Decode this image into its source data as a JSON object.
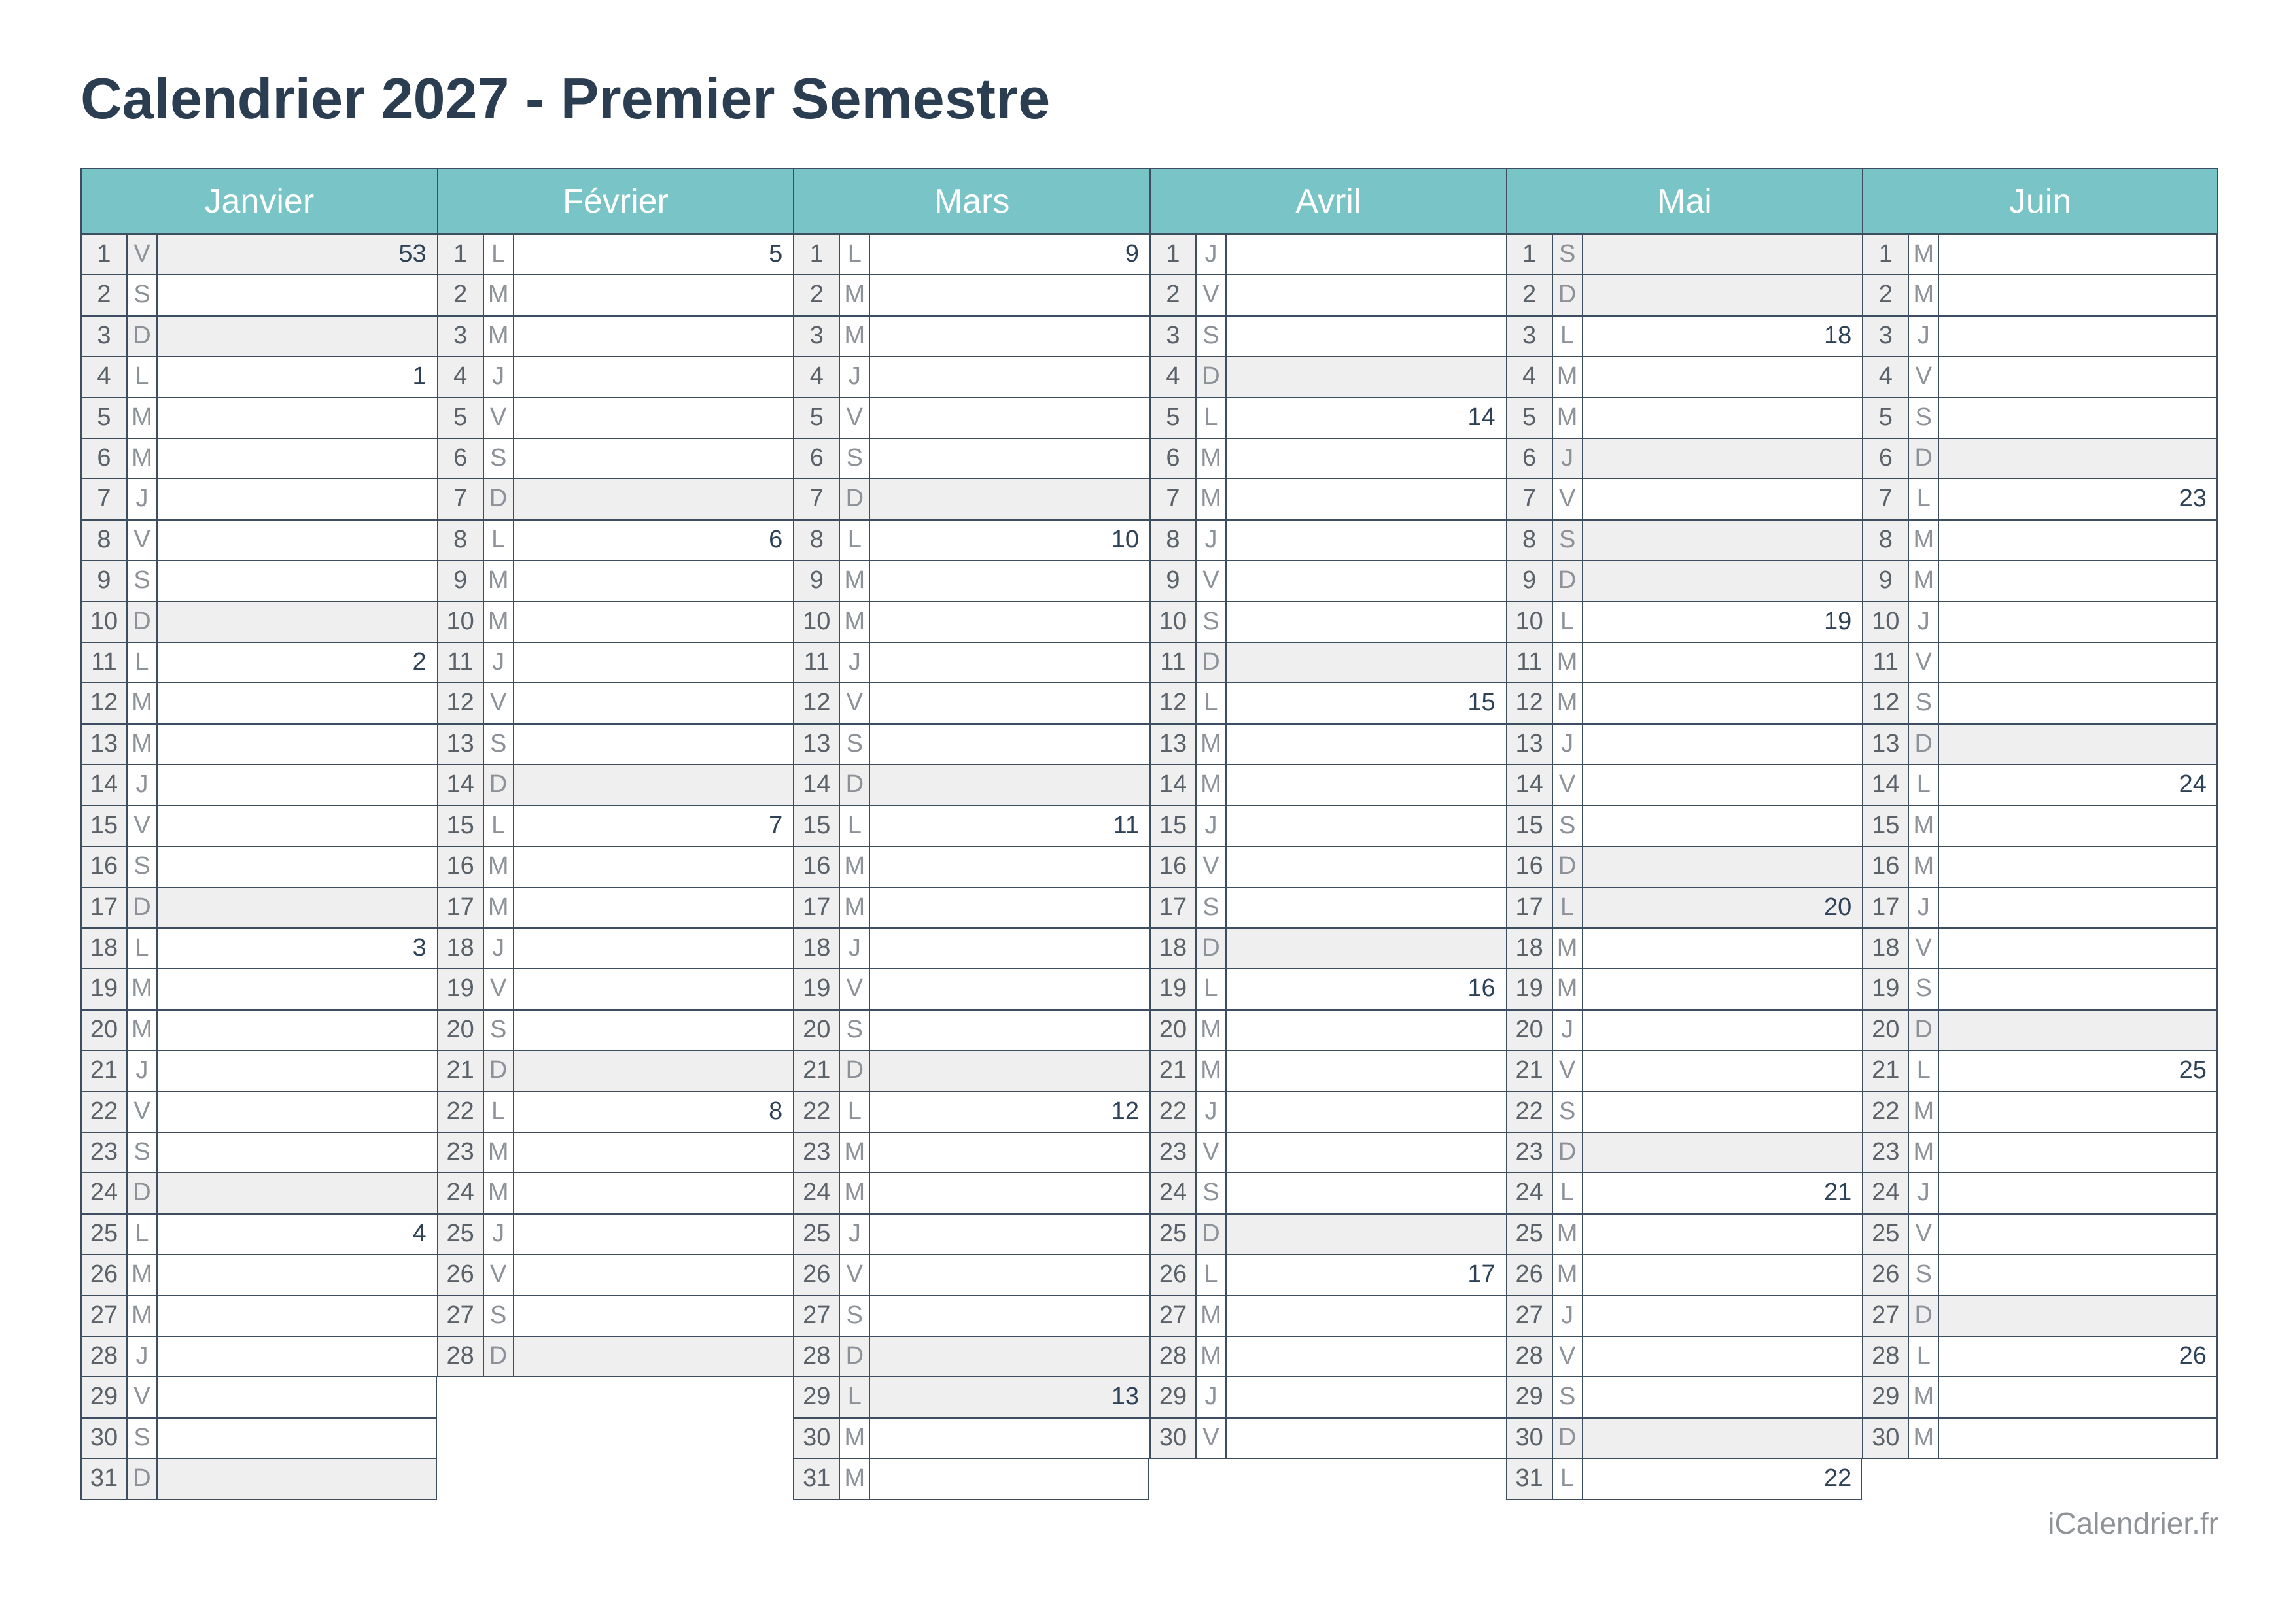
{
  "title": "Calendrier 2027 - Premier Semestre",
  "watermark": "iCalendrier.fr",
  "colors": {
    "teal": "#79c4c6",
    "border": "#3d4e61",
    "gray": "#efefef",
    "title": "#2b3e51",
    "num": "#5a6169",
    "letter": "#8d9298",
    "week": "#2e4257",
    "watermark": "#8f9397"
  },
  "day_format": [
    "day_number",
    "day_letter",
    "week_number",
    "is_sunday_or_holiday"
  ],
  "months": [
    {
      "name": "Janvier",
      "days": [
        [
          1,
          "V",
          "53",
          1
        ],
        [
          2,
          "S",
          "",
          0
        ],
        [
          3,
          "D",
          "",
          1
        ],
        [
          4,
          "L",
          "1",
          0
        ],
        [
          5,
          "M",
          "",
          0
        ],
        [
          6,
          "M",
          "",
          0
        ],
        [
          7,
          "J",
          "",
          0
        ],
        [
          8,
          "V",
          "",
          0
        ],
        [
          9,
          "S",
          "",
          0
        ],
        [
          10,
          "D",
          "",
          1
        ],
        [
          11,
          "L",
          "2",
          0
        ],
        [
          12,
          "M",
          "",
          0
        ],
        [
          13,
          "M",
          "",
          0
        ],
        [
          14,
          "J",
          "",
          0
        ],
        [
          15,
          "V",
          "",
          0
        ],
        [
          16,
          "S",
          "",
          0
        ],
        [
          17,
          "D",
          "",
          1
        ],
        [
          18,
          "L",
          "3",
          0
        ],
        [
          19,
          "M",
          "",
          0
        ],
        [
          20,
          "M",
          "",
          0
        ],
        [
          21,
          "J",
          "",
          0
        ],
        [
          22,
          "V",
          "",
          0
        ],
        [
          23,
          "S",
          "",
          0
        ],
        [
          24,
          "D",
          "",
          1
        ],
        [
          25,
          "L",
          "4",
          0
        ],
        [
          26,
          "M",
          "",
          0
        ],
        [
          27,
          "M",
          "",
          0
        ],
        [
          28,
          "J",
          "",
          0
        ],
        [
          29,
          "V",
          "",
          0
        ],
        [
          30,
          "S",
          "",
          0
        ],
        [
          31,
          "D",
          "",
          1
        ]
      ]
    },
    {
      "name": "Février",
      "days": [
        [
          1,
          "L",
          "5",
          0
        ],
        [
          2,
          "M",
          "",
          0
        ],
        [
          3,
          "M",
          "",
          0
        ],
        [
          4,
          "J",
          "",
          0
        ],
        [
          5,
          "V",
          "",
          0
        ],
        [
          6,
          "S",
          "",
          0
        ],
        [
          7,
          "D",
          "",
          1
        ],
        [
          8,
          "L",
          "6",
          0
        ],
        [
          9,
          "M",
          "",
          0
        ],
        [
          10,
          "M",
          "",
          0
        ],
        [
          11,
          "J",
          "",
          0
        ],
        [
          12,
          "V",
          "",
          0
        ],
        [
          13,
          "S",
          "",
          0
        ],
        [
          14,
          "D",
          "",
          1
        ],
        [
          15,
          "L",
          "7",
          0
        ],
        [
          16,
          "M",
          "",
          0
        ],
        [
          17,
          "M",
          "",
          0
        ],
        [
          18,
          "J",
          "",
          0
        ],
        [
          19,
          "V",
          "",
          0
        ],
        [
          20,
          "S",
          "",
          0
        ],
        [
          21,
          "D",
          "",
          1
        ],
        [
          22,
          "L",
          "8",
          0
        ],
        [
          23,
          "M",
          "",
          0
        ],
        [
          24,
          "M",
          "",
          0
        ],
        [
          25,
          "J",
          "",
          0
        ],
        [
          26,
          "V",
          "",
          0
        ],
        [
          27,
          "S",
          "",
          0
        ],
        [
          28,
          "D",
          "",
          1
        ]
      ]
    },
    {
      "name": "Mars",
      "days": [
        [
          1,
          "L",
          "9",
          0
        ],
        [
          2,
          "M",
          "",
          0
        ],
        [
          3,
          "M",
          "",
          0
        ],
        [
          4,
          "J",
          "",
          0
        ],
        [
          5,
          "V",
          "",
          0
        ],
        [
          6,
          "S",
          "",
          0
        ],
        [
          7,
          "D",
          "",
          1
        ],
        [
          8,
          "L",
          "10",
          0
        ],
        [
          9,
          "M",
          "",
          0
        ],
        [
          10,
          "M",
          "",
          0
        ],
        [
          11,
          "J",
          "",
          0
        ],
        [
          12,
          "V",
          "",
          0
        ],
        [
          13,
          "S",
          "",
          0
        ],
        [
          14,
          "D",
          "",
          1
        ],
        [
          15,
          "L",
          "11",
          0
        ],
        [
          16,
          "M",
          "",
          0
        ],
        [
          17,
          "M",
          "",
          0
        ],
        [
          18,
          "J",
          "",
          0
        ],
        [
          19,
          "V",
          "",
          0
        ],
        [
          20,
          "S",
          "",
          0
        ],
        [
          21,
          "D",
          "",
          1
        ],
        [
          22,
          "L",
          "12",
          0
        ],
        [
          23,
          "M",
          "",
          0
        ],
        [
          24,
          "M",
          "",
          0
        ],
        [
          25,
          "J",
          "",
          0
        ],
        [
          26,
          "V",
          "",
          0
        ],
        [
          27,
          "S",
          "",
          0
        ],
        [
          28,
          "D",
          "",
          1
        ],
        [
          29,
          "L",
          "13",
          1
        ],
        [
          30,
          "M",
          "",
          0
        ],
        [
          31,
          "M",
          "",
          0
        ]
      ]
    },
    {
      "name": "Avril",
      "days": [
        [
          1,
          "J",
          "",
          0
        ],
        [
          2,
          "V",
          "",
          0
        ],
        [
          3,
          "S",
          "",
          0
        ],
        [
          4,
          "D",
          "",
          1
        ],
        [
          5,
          "L",
          "14",
          0
        ],
        [
          6,
          "M",
          "",
          0
        ],
        [
          7,
          "M",
          "",
          0
        ],
        [
          8,
          "J",
          "",
          0
        ],
        [
          9,
          "V",
          "",
          0
        ],
        [
          10,
          "S",
          "",
          0
        ],
        [
          11,
          "D",
          "",
          1
        ],
        [
          12,
          "L",
          "15",
          0
        ],
        [
          13,
          "M",
          "",
          0
        ],
        [
          14,
          "M",
          "",
          0
        ],
        [
          15,
          "J",
          "",
          0
        ],
        [
          16,
          "V",
          "",
          0
        ],
        [
          17,
          "S",
          "",
          0
        ],
        [
          18,
          "D",
          "",
          1
        ],
        [
          19,
          "L",
          "16",
          0
        ],
        [
          20,
          "M",
          "",
          0
        ],
        [
          21,
          "M",
          "",
          0
        ],
        [
          22,
          "J",
          "",
          0
        ],
        [
          23,
          "V",
          "",
          0
        ],
        [
          24,
          "S",
          "",
          0
        ],
        [
          25,
          "D",
          "",
          1
        ],
        [
          26,
          "L",
          "17",
          0
        ],
        [
          27,
          "M",
          "",
          0
        ],
        [
          28,
          "M",
          "",
          0
        ],
        [
          29,
          "J",
          "",
          0
        ],
        [
          30,
          "V",
          "",
          0
        ]
      ]
    },
    {
      "name": "Mai",
      "days": [
        [
          1,
          "S",
          "",
          1
        ],
        [
          2,
          "D",
          "",
          1
        ],
        [
          3,
          "L",
          "18",
          0
        ],
        [
          4,
          "M",
          "",
          0
        ],
        [
          5,
          "M",
          "",
          0
        ],
        [
          6,
          "J",
          "",
          1
        ],
        [
          7,
          "V",
          "",
          0
        ],
        [
          8,
          "S",
          "",
          1
        ],
        [
          9,
          "D",
          "",
          1
        ],
        [
          10,
          "L",
          "19",
          0
        ],
        [
          11,
          "M",
          "",
          0
        ],
        [
          12,
          "M",
          "",
          0
        ],
        [
          13,
          "J",
          "",
          0
        ],
        [
          14,
          "V",
          "",
          0
        ],
        [
          15,
          "S",
          "",
          0
        ],
        [
          16,
          "D",
          "",
          1
        ],
        [
          17,
          "L",
          "20",
          1
        ],
        [
          18,
          "M",
          "",
          0
        ],
        [
          19,
          "M",
          "",
          0
        ],
        [
          20,
          "J",
          "",
          0
        ],
        [
          21,
          "V",
          "",
          0
        ],
        [
          22,
          "S",
          "",
          0
        ],
        [
          23,
          "D",
          "",
          1
        ],
        [
          24,
          "L",
          "21",
          0
        ],
        [
          25,
          "M",
          "",
          0
        ],
        [
          26,
          "M",
          "",
          0
        ],
        [
          27,
          "J",
          "",
          0
        ],
        [
          28,
          "V",
          "",
          0
        ],
        [
          29,
          "S",
          "",
          0
        ],
        [
          30,
          "D",
          "",
          1
        ],
        [
          31,
          "L",
          "22",
          0
        ]
      ]
    },
    {
      "name": "Juin",
      "days": [
        [
          1,
          "M",
          "",
          0
        ],
        [
          2,
          "M",
          "",
          0
        ],
        [
          3,
          "J",
          "",
          0
        ],
        [
          4,
          "V",
          "",
          0
        ],
        [
          5,
          "S",
          "",
          0
        ],
        [
          6,
          "D",
          "",
          1
        ],
        [
          7,
          "L",
          "23",
          0
        ],
        [
          8,
          "M",
          "",
          0
        ],
        [
          9,
          "M",
          "",
          0
        ],
        [
          10,
          "J",
          "",
          0
        ],
        [
          11,
          "V",
          "",
          0
        ],
        [
          12,
          "S",
          "",
          0
        ],
        [
          13,
          "D",
          "",
          1
        ],
        [
          14,
          "L",
          "24",
          0
        ],
        [
          15,
          "M",
          "",
          0
        ],
        [
          16,
          "M",
          "",
          0
        ],
        [
          17,
          "J",
          "",
          0
        ],
        [
          18,
          "V",
          "",
          0
        ],
        [
          19,
          "S",
          "",
          0
        ],
        [
          20,
          "D",
          "",
          1
        ],
        [
          21,
          "L",
          "25",
          0
        ],
        [
          22,
          "M",
          "",
          0
        ],
        [
          23,
          "M",
          "",
          0
        ],
        [
          24,
          "J",
          "",
          0
        ],
        [
          25,
          "V",
          "",
          0
        ],
        [
          26,
          "S",
          "",
          0
        ],
        [
          27,
          "D",
          "",
          1
        ],
        [
          28,
          "L",
          "26",
          0
        ],
        [
          29,
          "M",
          "",
          0
        ],
        [
          30,
          "M",
          "",
          0
        ]
      ]
    }
  ]
}
